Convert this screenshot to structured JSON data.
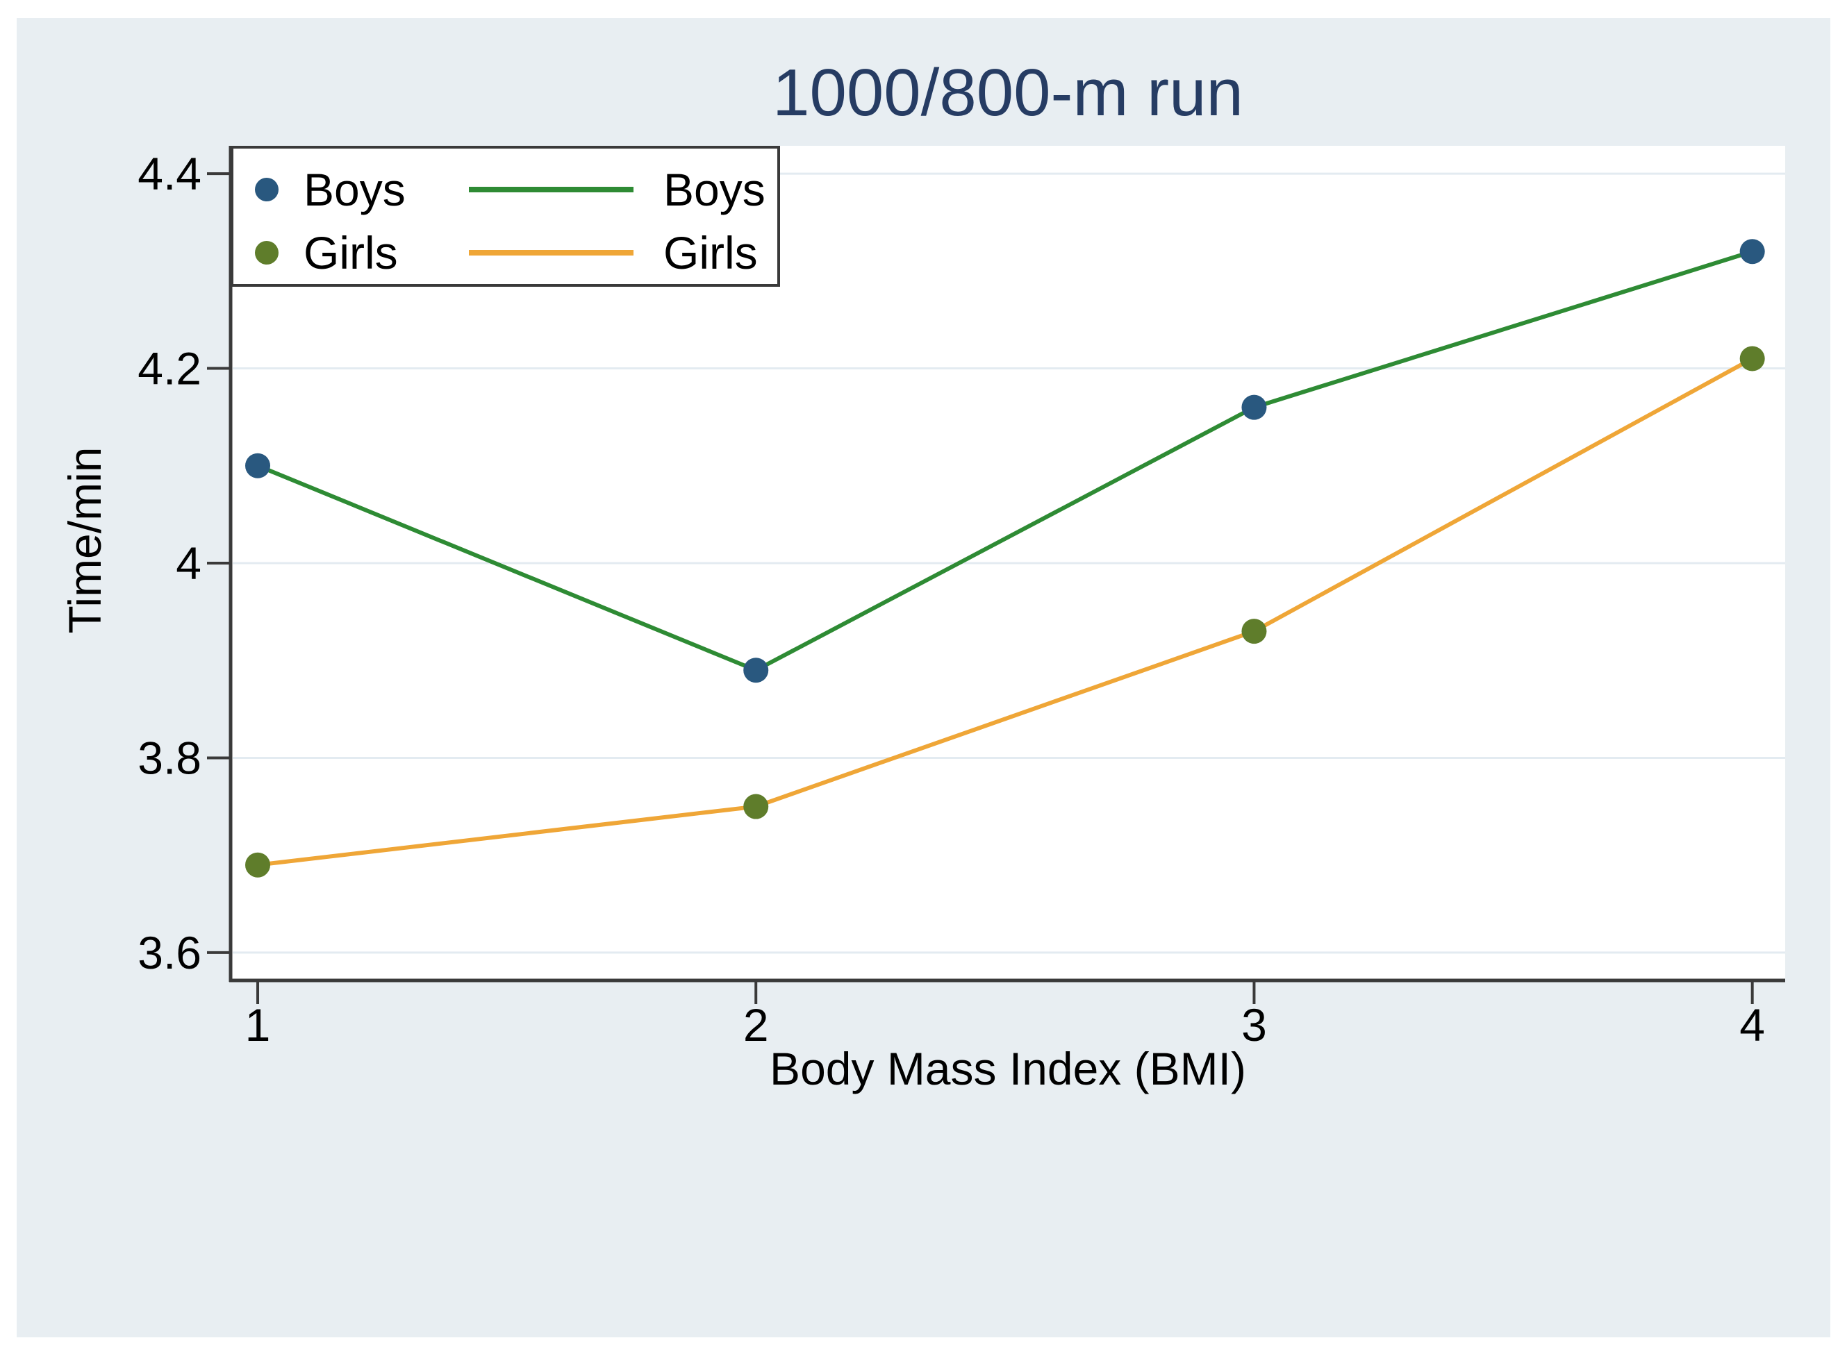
{
  "title": "1000/800-m run",
  "colors": {
    "panel_bg": "#e8eef2",
    "plot_bg": "#ffffff",
    "grid_color": "#e3ebf1",
    "axis_color": "#3a3a3a",
    "title_color": "#263c63",
    "text_color": "#000000",
    "legend_border": "#3a3a3a",
    "legend_bg": "#ffffff"
  },
  "chart_data": {
    "type": "line",
    "title": "1000/800-m run",
    "xlabel": "Body Mass Index (BMI)",
    "ylabel": "Time/min",
    "x": [
      1,
      2,
      3,
      4
    ],
    "series": [
      {
        "name": "Boys",
        "values": [
          4.1,
          3.89,
          4.16,
          4.32
        ],
        "line_color": "#2e8b34",
        "marker_color": "#29587f"
      },
      {
        "name": "Girls",
        "values": [
          3.69,
          3.75,
          3.93,
          4.21
        ],
        "line_color": "#efa637",
        "marker_color": "#5f7d2b"
      }
    ],
    "xticks": [
      1,
      2,
      3,
      4
    ],
    "xtick_labels": [
      "1",
      "2",
      "3",
      "4"
    ],
    "yticks": [
      3.6,
      3.8,
      4.0,
      4.2,
      4.4
    ],
    "ytick_labels": [
      "3.6",
      "3.8",
      "4",
      "4.2",
      "4.4"
    ],
    "xlim": [
      0.9456,
      4.066
    ],
    "ylim": [
      3.5714,
      4.4286
    ],
    "grid": true,
    "legend_position": "top-left"
  },
  "legend": {
    "marker_column": [
      {
        "label": "Boys"
      },
      {
        "label": "Girls"
      }
    ],
    "line_column": [
      {
        "label": "Boys"
      },
      {
        "label": "Girls"
      }
    ]
  }
}
